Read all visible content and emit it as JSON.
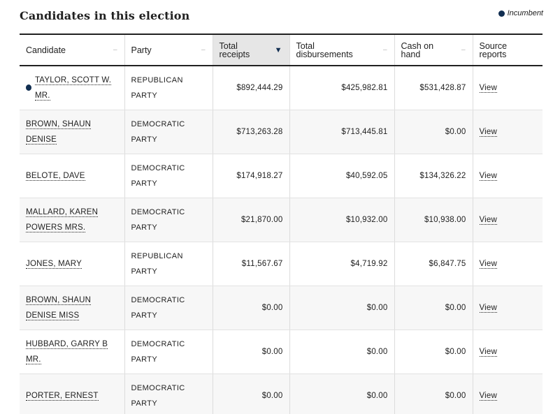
{
  "title": "Candidates in this election",
  "legend": {
    "label": "Incumbent",
    "color": "#112e51"
  },
  "columns": [
    {
      "label": "Candidate",
      "sort_icon": "sort-neutral-icon"
    },
    {
      "label": "Party",
      "sort_icon": "sort-neutral-icon"
    },
    {
      "label": "Total receipts",
      "sort_icon": "sort-descending-icon",
      "sorted": true
    },
    {
      "label": "Total disbursements",
      "sort_icon": "sort-neutral-icon"
    },
    {
      "label": "Cash on hand",
      "sort_icon": "sort-neutral-icon"
    },
    {
      "label": "Source reports"
    }
  ],
  "rows": [
    {
      "candidate": "TAYLOR, SCOTT W. MR.",
      "incumbent": true,
      "party": "REPUBLICAN PARTY",
      "receipts": "$892,444.29",
      "disbursements": "$425,982.81",
      "cash": "$531,428.87",
      "report": "View"
    },
    {
      "candidate": "BROWN, SHAUN DENISE",
      "incumbent": false,
      "party": "DEMOCRATIC PARTY",
      "receipts": "$713,263.28",
      "disbursements": "$713,445.81",
      "cash": "$0.00",
      "report": "View"
    },
    {
      "candidate": "BELOTE, DAVE",
      "incumbent": false,
      "party": "DEMOCRATIC PARTY",
      "receipts": "$174,918.27",
      "disbursements": "$40,592.05",
      "cash": "$134,326.22",
      "report": "View"
    },
    {
      "candidate": "MALLARD, KAREN POWERS MRS.",
      "incumbent": false,
      "party": "DEMOCRATIC PARTY",
      "receipts": "$21,870.00",
      "disbursements": "$10,932.00",
      "cash": "$10,938.00",
      "report": "View"
    },
    {
      "candidate": "JONES, MARY",
      "incumbent": false,
      "party": "REPUBLICAN PARTY",
      "receipts": "$11,567.67",
      "disbursements": "$4,719.92",
      "cash": "$6,847.75",
      "report": "View"
    },
    {
      "candidate": "BROWN, SHAUN DENISE MISS",
      "incumbent": false,
      "party": "DEMOCRATIC PARTY",
      "receipts": "$0.00",
      "disbursements": "$0.00",
      "cash": "$0.00",
      "report": "View"
    },
    {
      "candidate": "HUBBARD, GARRY B MR.",
      "incumbent": false,
      "party": "DEMOCRATIC PARTY",
      "receipts": "$0.00",
      "disbursements": "$0.00",
      "cash": "$0.00",
      "report": "View"
    },
    {
      "candidate": "PORTER, ERNEST",
      "incumbent": false,
      "party": "DEMOCRATIC PARTY",
      "receipts": "$0.00",
      "disbursements": "$0.00",
      "cash": "$0.00",
      "report": "View"
    }
  ]
}
